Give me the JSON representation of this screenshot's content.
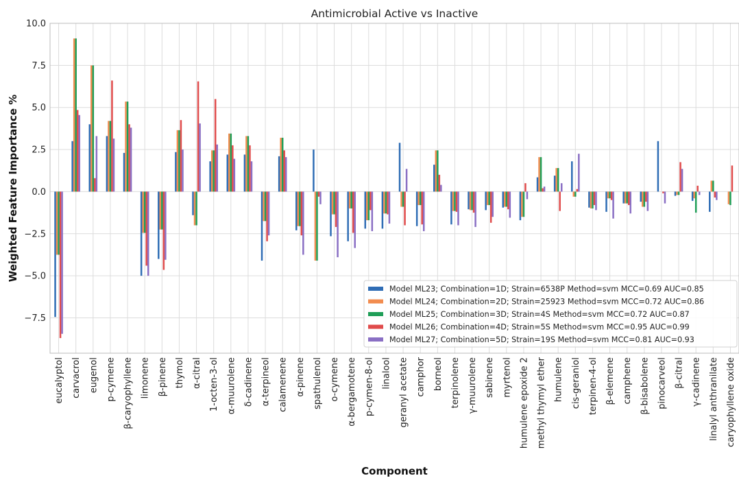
{
  "chart_data": {
    "type": "bar",
    "title": "Antimicrobial Active vs Inactive",
    "xlabel": "Component",
    "ylabel": "Weighted Feature Importance %",
    "ylim": [
      -9.6,
      10.0
    ],
    "yticks": [
      "10.0",
      "7.5",
      "5.0",
      "2.5",
      "0.0",
      "−2.5",
      "−5.0",
      "−7.5"
    ],
    "ytick_values": [
      10,
      7.5,
      5,
      2.5,
      0,
      -2.5,
      -5,
      -7.5
    ],
    "grid": true,
    "legend_position": "lower-right",
    "categories": [
      "eucalyptol",
      "carvacrol",
      "eugenol",
      "p-cymene",
      "β-caryophyllene",
      "limonene",
      "β-pinene",
      "thymol",
      "α-citral",
      "1-octen-3-ol",
      "α-muurolene",
      "δ-cadinene",
      "α-terpineol",
      "calamenene",
      "α-pinene",
      "spathulenol",
      "o-cymene",
      "α-bergamotene",
      "p-cymen-8-ol",
      "linalool",
      "geranyl acetate",
      "camphor",
      "borneol",
      "terpinolene",
      "γ-muurolene",
      "sabinene",
      "myrtenol",
      "humulene epoxide 2",
      "methyl thymyl ether",
      "humulene",
      "cis-geraniol",
      "terpinen-4-ol",
      "β-elemene",
      "camphene",
      "β-bisabolene",
      "pinocarveol",
      "β-citral",
      "γ-cadinene",
      "linalyl anthranilate",
      "caryophyllene oxide"
    ],
    "series": [
      {
        "name": "Model ML23; Combination=1D; Strain=6538P Method=svm MCC=0.69 AUC=0.85",
        "color": "#2f6db5",
        "values": [
          -7.45,
          3.0,
          4.0,
          3.3,
          2.3,
          -5.0,
          -4.0,
          2.35,
          -1.4,
          1.8,
          2.2,
          2.2,
          -4.1,
          2.1,
          -2.3,
          2.5,
          -2.65,
          -2.95,
          -2.2,
          -2.2,
          2.9,
          -2.05,
          1.6,
          -1.95,
          -1.05,
          -1.1,
          -0.95,
          -1.7,
          0.85,
          0.95,
          1.8,
          -0.95,
          -1.2,
          -0.7,
          -0.6,
          3.0,
          -0.25,
          -0.55,
          -1.2,
          0.0
        ]
      },
      {
        "name": "Model ML24; Combination=2D; Strain=25923 Method=svm MCC=0.72 AUC=0.86",
        "color": "#f28c4f",
        "values": [
          -3.75,
          9.1,
          7.5,
          4.2,
          5.35,
          -2.45,
          -2.25,
          3.65,
          -2.0,
          2.45,
          3.45,
          3.3,
          -1.75,
          3.2,
          -2.05,
          -4.1,
          -1.35,
          -1.0,
          -1.7,
          -1.3,
          -0.9,
          -0.8,
          2.45,
          -1.15,
          -1.1,
          -0.8,
          -0.9,
          -1.5,
          2.05,
          1.4,
          -0.3,
          -1.0,
          -0.4,
          -0.7,
          -0.9,
          0.0,
          -0.2,
          -0.4,
          0.65,
          -0.75
        ]
      },
      {
        "name": "Model ML25; Combination=3D; Strain=4S Method=svm MCC=0.72 AUC=0.87",
        "color": "#1f9e57",
        "values": [
          -3.75,
          9.1,
          7.5,
          4.2,
          5.35,
          -2.45,
          -2.25,
          3.65,
          -2.0,
          2.45,
          3.45,
          3.3,
          -1.75,
          3.2,
          -2.05,
          -4.1,
          -1.35,
          -1.0,
          -1.7,
          -1.3,
          -0.9,
          -0.8,
          2.45,
          -1.15,
          -1.1,
          -0.8,
          -0.9,
          -1.5,
          2.05,
          1.4,
          -0.3,
          -1.0,
          -0.4,
          -0.7,
          -0.9,
          0.0,
          -0.2,
          -1.25,
          0.65,
          -0.8
        ]
      },
      {
        "name": "Model ML26; Combination=4D; Strain=5S Method=svm MCC=0.95 AUC=0.99",
        "color": "#e04b4b",
        "values": [
          -8.7,
          4.85,
          0.8,
          6.6,
          4.0,
          -4.4,
          -4.65,
          4.25,
          6.55,
          5.5,
          2.75,
          2.75,
          -2.95,
          2.45,
          -2.6,
          -0.3,
          -2.1,
          -2.45,
          -1.1,
          -1.35,
          -2.0,
          -1.95,
          1.0,
          -1.2,
          -1.25,
          -1.85,
          -1.05,
          0.5,
          0.2,
          -1.15,
          0.15,
          -0.8,
          -0.5,
          -0.8,
          -0.6,
          -0.1,
          1.75,
          0.35,
          -0.35,
          1.55
        ]
      },
      {
        "name": "Model ML27; Combination=5D; Strain=19S Method=svm MCC=0.81 AUC=0.93",
        "color": "#8a6fc4",
        "values": [
          -8.45,
          4.55,
          3.3,
          3.15,
          3.8,
          -5.0,
          -4.05,
          2.5,
          4.05,
          2.8,
          1.95,
          1.8,
          -2.6,
          2.05,
          -3.75,
          -0.75,
          -3.9,
          -3.35,
          -2.35,
          -1.9,
          1.35,
          -2.35,
          0.4,
          -2.0,
          -2.1,
          -1.5,
          -1.55,
          -0.45,
          0.3,
          0.5,
          2.25,
          -1.1,
          -1.6,
          -1.3,
          -1.15,
          -0.7,
          1.35,
          -0.2,
          -0.5,
          0.0
        ]
      }
    ]
  }
}
